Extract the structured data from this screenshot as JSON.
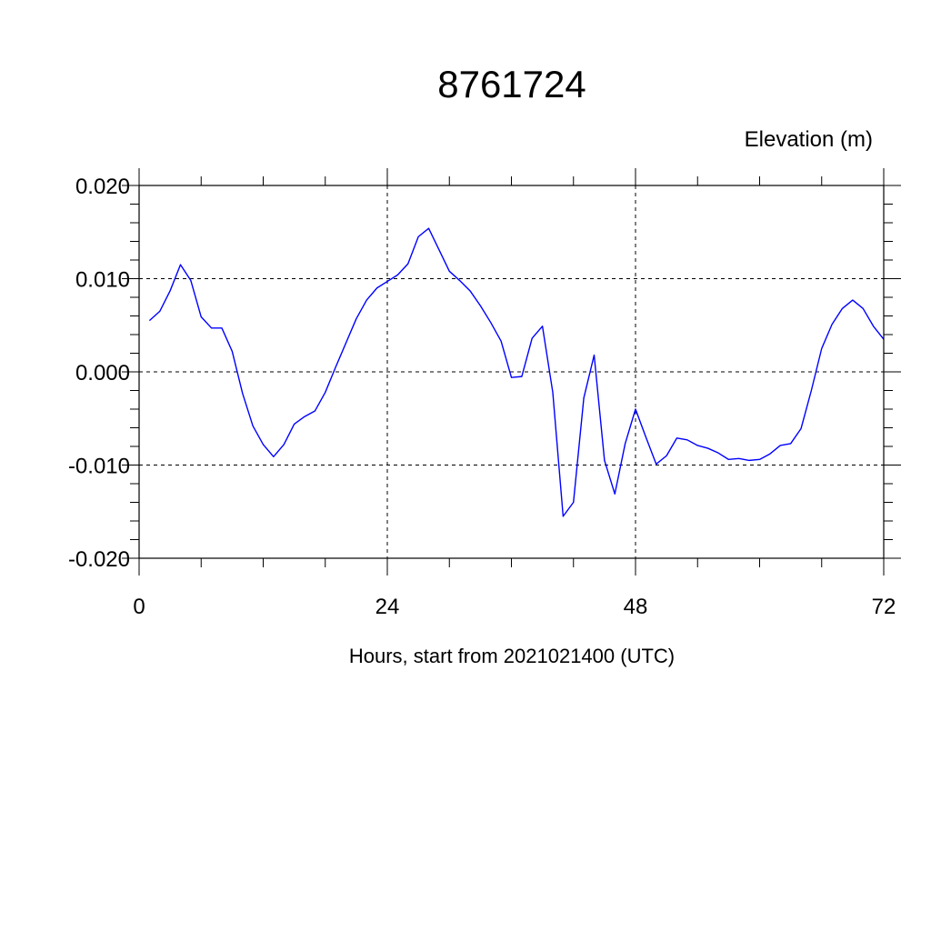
{
  "chart_data": {
    "type": "line",
    "title": "8761724",
    "ylabel": "Elevation (m)",
    "xlabel": "Hours, start from 2021021400 (UTC)",
    "xlim": [
      0,
      72
    ],
    "ylim": [
      -0.02,
      0.02
    ],
    "x_ticks": [
      0,
      24,
      48,
      72
    ],
    "x_tick_labels": [
      "0",
      "24",
      "48",
      "72"
    ],
    "y_ticks": [
      0.02,
      0.01,
      0.0,
      -0.01,
      -0.02
    ],
    "y_tick_labels": [
      "0.020",
      "0.010",
      "0.000",
      "-0.010",
      "-0.020"
    ],
    "grid": true,
    "series": [
      {
        "color": "#0000ff",
        "x": [
          1,
          2,
          3,
          4,
          5,
          6,
          7,
          8,
          9,
          10,
          11,
          12,
          13,
          14,
          15,
          16,
          17,
          18,
          19,
          20,
          21,
          22,
          23,
          24,
          25,
          26,
          27,
          28,
          29,
          30,
          31,
          32,
          33,
          34,
          35,
          36,
          37,
          38,
          39,
          40,
          41,
          42,
          43,
          44,
          45,
          46,
          47,
          48,
          49,
          50,
          51,
          52,
          53,
          54,
          55,
          56,
          57,
          58,
          59,
          60,
          61,
          62,
          63,
          64,
          65,
          66,
          67,
          68,
          69,
          70,
          71,
          72
        ],
        "values": [
          0.0055,
          0.0065,
          0.0087,
          0.0115,
          0.0098,
          0.0059,
          0.0047,
          0.0047,
          0.0022,
          -0.0023,
          -0.0058,
          -0.0078,
          -0.0091,
          -0.0078,
          -0.0056,
          -0.0048,
          -0.0042,
          -0.0022,
          0.0005,
          0.0031,
          0.0057,
          0.0077,
          0.009,
          0.0097,
          0.0104,
          0.0116,
          0.0145,
          0.0154,
          0.0131,
          0.0108,
          0.0098,
          0.0087,
          0.0071,
          0.0053,
          0.0033,
          -0.0006,
          -0.0005,
          0.0036,
          0.0049,
          -0.0022,
          -0.0155,
          -0.014,
          -0.0028,
          0.0018,
          -0.0095,
          -0.0131,
          -0.0077,
          -0.004,
          -0.007,
          -0.0099,
          -0.009,
          -0.0071,
          -0.0073,
          -0.0079,
          -0.0082,
          -0.0087,
          -0.0094,
          -0.0093,
          -0.0095,
          -0.0094,
          -0.0088,
          -0.0079,
          -0.0077,
          -0.0061,
          -0.002,
          0.0025,
          0.0051,
          0.0068,
          0.0077,
          0.0068,
          0.0049,
          0.0035
        ]
      }
    ]
  }
}
